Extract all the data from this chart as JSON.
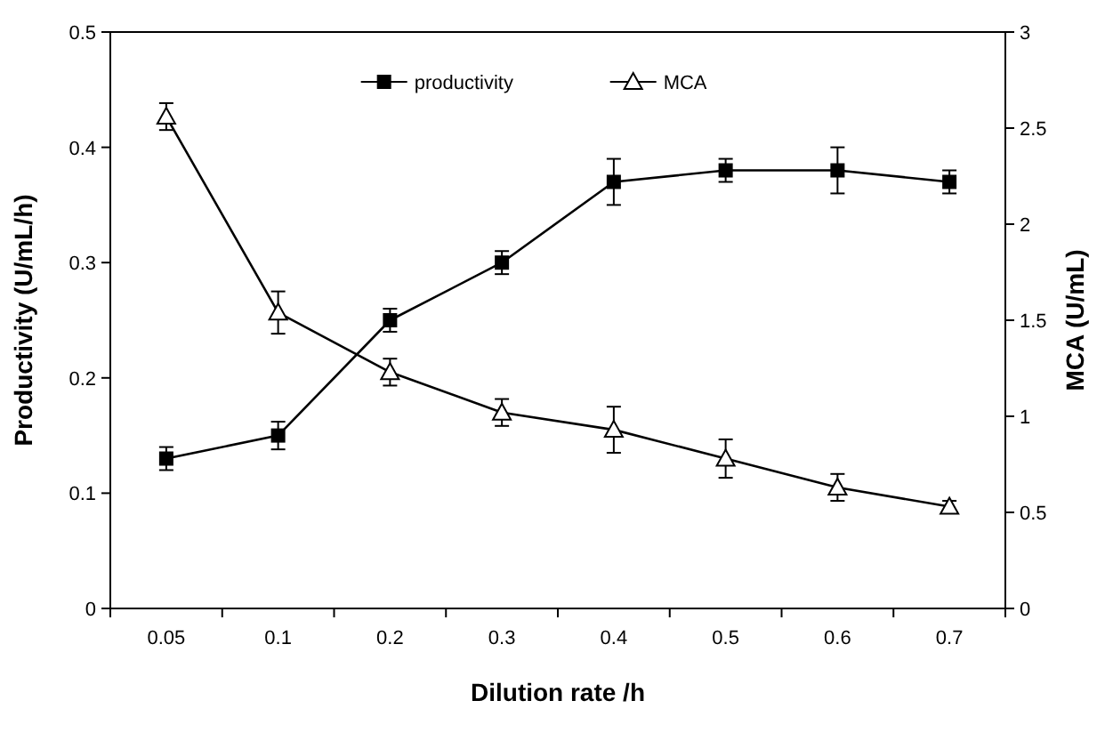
{
  "chart_data": {
    "type": "line",
    "xlabel": "Dilution rate /h",
    "ylabel": "Productivity (U/mL/h)",
    "y2label": "MCA (U/mL)",
    "categories": [
      "0.05",
      "0.1",
      "0.2",
      "0.3",
      "0.4",
      "0.5",
      "0.6",
      "0.7"
    ],
    "series": [
      {
        "name": "productivity",
        "color": "#000000",
        "marker": "square",
        "values": [
          0.13,
          0.15,
          0.25,
          0.3,
          0.37,
          0.38,
          0.38,
          0.37
        ],
        "errors": [
          0.01,
          0.012,
          0.01,
          0.01,
          0.02,
          0.01,
          0.02,
          0.01
        ]
      },
      {
        "name": "MCA",
        "color": "#000000",
        "marker": "triangle",
        "axis": "y2",
        "values": [
          2.56,
          1.54,
          1.23,
          1.02,
          0.93,
          0.78,
          0.63,
          0.53
        ],
        "errors": [
          0.07,
          0.11,
          0.07,
          0.07,
          0.12,
          0.1,
          0.07,
          0.03
        ]
      }
    ],
    "ylim": [
      0,
      0.5
    ],
    "yticks": [
      0,
      0.1,
      0.2,
      0.3,
      0.4,
      0.5
    ],
    "y2lim": [
      0,
      3
    ],
    "y2ticks": [
      0,
      0.5,
      1,
      1.5,
      2,
      2.5,
      3
    ],
    "legend": "top",
    "grid": false,
    "line_style": "solid"
  }
}
